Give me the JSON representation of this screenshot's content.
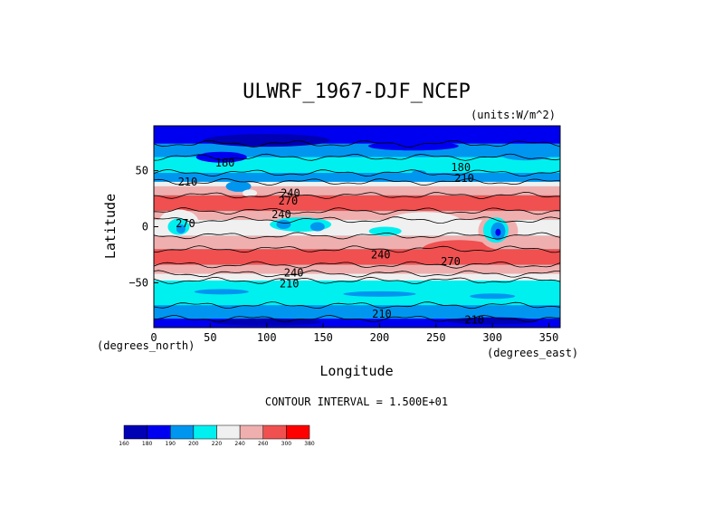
{
  "chart_data": {
    "type": "heatmap",
    "title": "ULWRF_1967-DJF_NCEP",
    "units": "(units:W/m^2)",
    "xlabel": "Longitude",
    "ylabel": "Latitude",
    "x_unit_label": "(degrees_east)",
    "y_unit_label": "(degrees_north)",
    "xlim": [
      0,
      360
    ],
    "ylim": [
      -90,
      90
    ],
    "x_ticks": [
      "0",
      "50",
      "100",
      "150",
      "200",
      "250",
      "300",
      "350"
    ],
    "y_ticks": [
      "50",
      "0",
      "−50"
    ],
    "contour_interval_text": "CONTOUR INTERVAL = 1.500E+01",
    "contour_labels": [
      {
        "text": "180",
        "lon": 63,
        "lat": 57
      },
      {
        "text": "210",
        "lon": 30,
        "lat": 40
      },
      {
        "text": "180",
        "lon": 272,
        "lat": 53
      },
      {
        "text": "210",
        "lon": 275,
        "lat": 43
      },
      {
        "text": "240",
        "lon": 121,
        "lat": 30
      },
      {
        "text": "270",
        "lon": 119,
        "lat": 23
      },
      {
        "text": "240",
        "lon": 113,
        "lat": 11
      },
      {
        "text": "270",
        "lon": 28,
        "lat": 3
      },
      {
        "text": "240",
        "lon": 201,
        "lat": -25
      },
      {
        "text": "270",
        "lon": 263,
        "lat": -31
      },
      {
        "text": "240",
        "lon": 124,
        "lat": -41
      },
      {
        "text": "210",
        "lon": 120,
        "lat": -51
      },
      {
        "text": "210",
        "lon": 202,
        "lat": -78
      },
      {
        "text": "210",
        "lon": 284,
        "lat": -83
      }
    ],
    "colorbar": {
      "labels": [
        "160",
        "180",
        "190",
        "200",
        "220",
        "240",
        "260",
        "300",
        "380"
      ],
      "colors": [
        "#0000b4",
        "#0000f0",
        "#0096f0",
        "#00f0f0",
        "#f0f0f0",
        "#f0afaf",
        "#f05050",
        "#ff0000"
      ]
    }
  }
}
